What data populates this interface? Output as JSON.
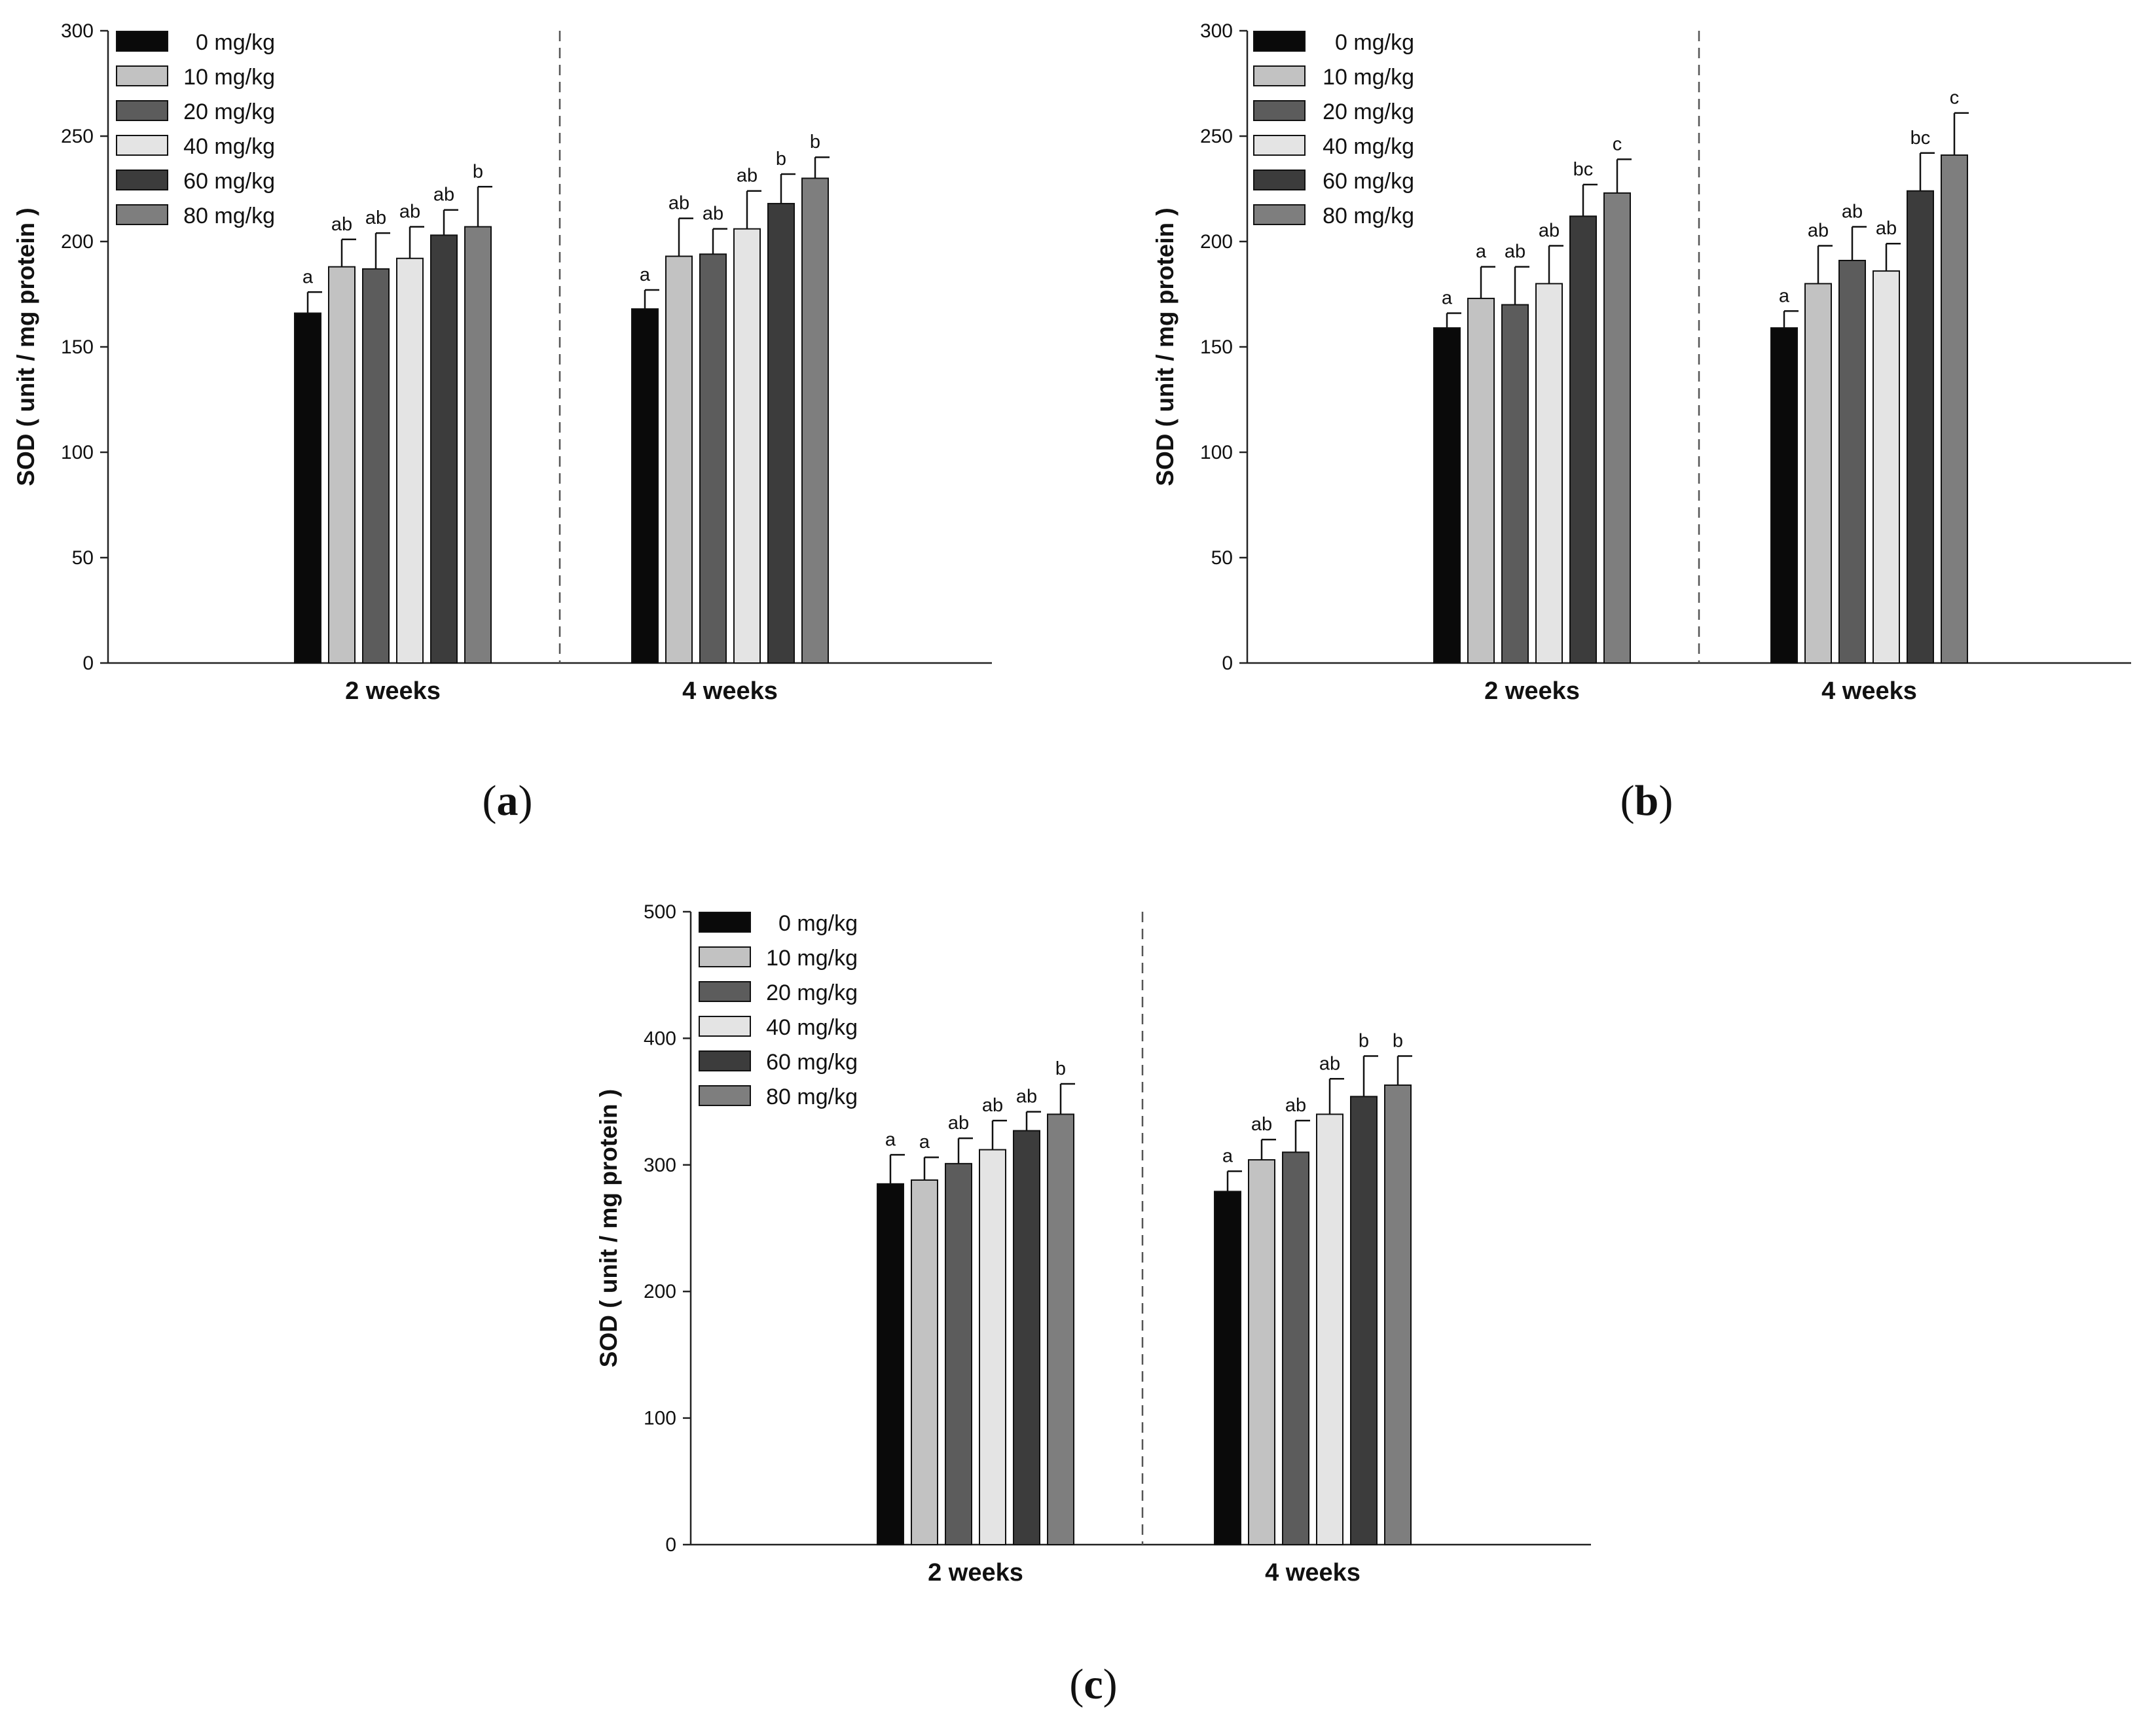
{
  "legend_labels": [
    "0 mg/kg",
    "10 mg/kg",
    "20 mg/kg",
    "40 mg/kg",
    "60 mg/kg",
    "80 mg/kg"
  ],
  "colors": [
    "#0a0a0a",
    "#c2c2c2",
    "#5c5c5c",
    "#e4e4e4",
    "#3c3c3c",
    "#7e7e7e"
  ],
  "chart_data": [
    {
      "type": "bar",
      "panel_label": "a",
      "title": "",
      "xlabel": "",
      "ylabel": "SOD ( unit / mg protein )",
      "ylim": [
        0,
        300
      ],
      "yticks": [
        0,
        50,
        100,
        150,
        200,
        250,
        300
      ],
      "categories": [
        "2 weeks",
        "4 weeks"
      ],
      "series": [
        {
          "name": "0 mg/kg",
          "values": [
            166,
            168
          ],
          "errors": [
            10,
            9
          ],
          "labels": [
            "a",
            "a"
          ]
        },
        {
          "name": "10 mg/kg",
          "values": [
            188,
            193
          ],
          "errors": [
            13,
            18
          ],
          "labels": [
            "ab",
            "ab"
          ]
        },
        {
          "name": "20 mg/kg",
          "values": [
            187,
            194
          ],
          "errors": [
            17,
            12
          ],
          "labels": [
            "ab",
            "ab"
          ]
        },
        {
          "name": "40 mg/kg",
          "values": [
            192,
            206
          ],
          "errors": [
            15,
            18
          ],
          "labels": [
            "ab",
            "ab"
          ]
        },
        {
          "name": "60 mg/kg",
          "values": [
            203,
            218
          ],
          "errors": [
            12,
            14
          ],
          "labels": [
            "ab",
            "b"
          ]
        },
        {
          "name": "80 mg/kg",
          "values": [
            207,
            230
          ],
          "errors": [
            19,
            10
          ],
          "labels": [
            "b",
            "b"
          ]
        }
      ]
    },
    {
      "type": "bar",
      "panel_label": "b",
      "title": "",
      "xlabel": "",
      "ylabel": "SOD ( unit / mg protein )",
      "ylim": [
        0,
        300
      ],
      "yticks": [
        0,
        50,
        100,
        150,
        200,
        250,
        300
      ],
      "categories": [
        "2 weeks",
        "4 weeks"
      ],
      "series": [
        {
          "name": "0 mg/kg",
          "values": [
            159,
            159
          ],
          "errors": [
            7,
            8
          ],
          "labels": [
            "a",
            "a"
          ]
        },
        {
          "name": "10 mg/kg",
          "values": [
            173,
            180
          ],
          "errors": [
            15,
            18
          ],
          "labels": [
            "a",
            "ab"
          ]
        },
        {
          "name": "20 mg/kg",
          "values": [
            170,
            191
          ],
          "errors": [
            18,
            16
          ],
          "labels": [
            "ab",
            "ab"
          ]
        },
        {
          "name": "40 mg/kg",
          "values": [
            180,
            186
          ],
          "errors": [
            18,
            13
          ],
          "labels": [
            "ab",
            "ab"
          ]
        },
        {
          "name": "60 mg/kg",
          "values": [
            212,
            224
          ],
          "errors": [
            15,
            18
          ],
          "labels": [
            "bc",
            "bc"
          ]
        },
        {
          "name": "80 mg/kg",
          "values": [
            223,
            241
          ],
          "errors": [
            16,
            20
          ],
          "labels": [
            "c",
            "c"
          ]
        }
      ]
    },
    {
      "type": "bar",
      "panel_label": "c",
      "title": "",
      "xlabel": "",
      "ylabel": "SOD ( unit / mg protein )",
      "ylim": [
        0,
        500
      ],
      "yticks": [
        0,
        100,
        200,
        300,
        400,
        500
      ],
      "categories": [
        "2 weeks",
        "4 weeks"
      ],
      "series": [
        {
          "name": "0 mg/kg",
          "values": [
            285,
            279
          ],
          "errors": [
            23,
            16
          ],
          "labels": [
            "a",
            "a"
          ]
        },
        {
          "name": "10 mg/kg",
          "values": [
            288,
            304
          ],
          "errors": [
            18,
            16
          ],
          "labels": [
            "a",
            "ab"
          ]
        },
        {
          "name": "20 mg/kg",
          "values": [
            301,
            310
          ],
          "errors": [
            20,
            25
          ],
          "labels": [
            "ab",
            "ab"
          ]
        },
        {
          "name": "40 mg/kg",
          "values": [
            312,
            340
          ],
          "errors": [
            23,
            28
          ],
          "labels": [
            "ab",
            "ab"
          ]
        },
        {
          "name": "60 mg/kg",
          "values": [
            327,
            354
          ],
          "errors": [
            15,
            32
          ],
          "labels": [
            "ab",
            "b"
          ]
        },
        {
          "name": "80 mg/kg",
          "values": [
            340,
            363
          ],
          "errors": [
            24,
            23
          ],
          "labels": [
            "b",
            "b"
          ]
        }
      ]
    }
  ]
}
